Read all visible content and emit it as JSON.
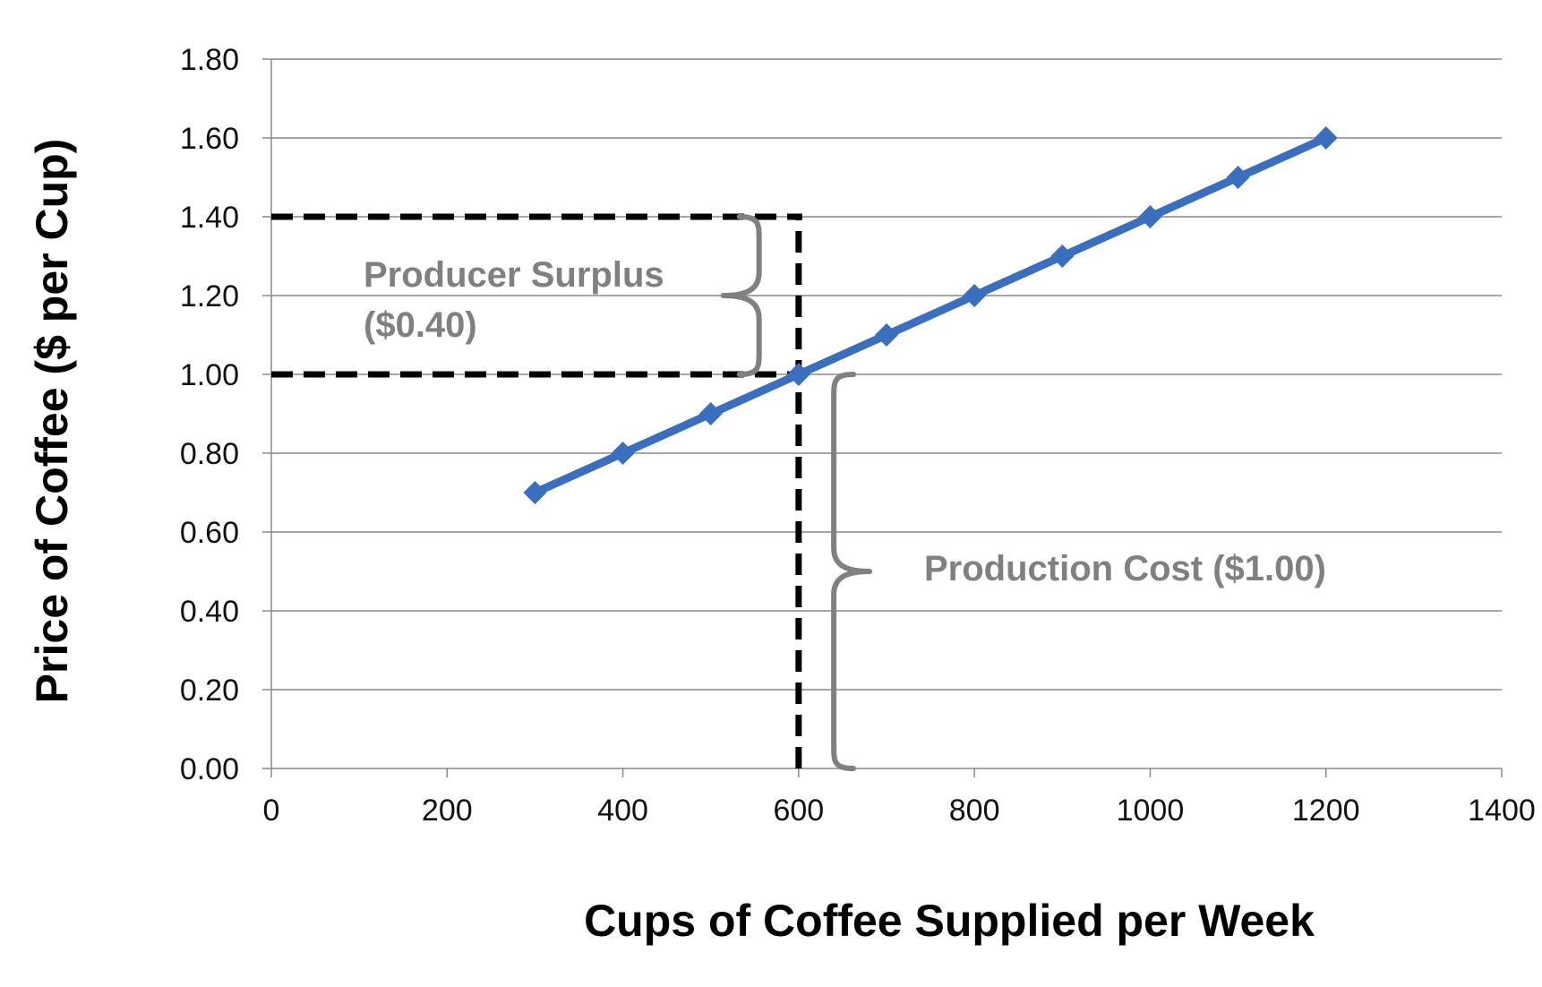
{
  "chart_data": {
    "type": "line",
    "xlabel": "Cups of Coffee Supplied per Week",
    "ylabel": "Price of Coffee ($ per Cup)",
    "xlim": [
      0,
      1400
    ],
    "ylim": [
      0,
      1.8
    ],
    "x_ticks": [
      "0",
      "200",
      "400",
      "600",
      "800",
      "1000",
      "1200",
      "1400"
    ],
    "y_ticks": [
      "0.00",
      "0.20",
      "0.40",
      "0.60",
      "0.80",
      "1.00",
      "1.20",
      "1.40",
      "1.60",
      "1.80"
    ],
    "grid": "horizontal",
    "legend": "none",
    "series": [
      {
        "x": [
          300,
          400,
          500,
          600,
          700,
          800,
          900,
          1000,
          1100,
          1200
        ],
        "values": [
          0.7,
          0.8,
          0.9,
          1.0,
          1.1,
          1.2,
          1.3,
          1.4,
          1.5,
          1.6
        ],
        "color": "#3a6fbf",
        "marker": "diamond"
      }
    ],
    "reference_lines": [
      {
        "type": "horizontal",
        "y": 1.4,
        "x_from": 0,
        "x_to": 600,
        "style": "dashed",
        "color": "#000000"
      },
      {
        "type": "horizontal",
        "y": 1.0,
        "x_from": 0,
        "x_to": 600,
        "style": "dashed",
        "color": "#000000"
      },
      {
        "type": "vertical",
        "x": 600,
        "y_from": 0,
        "y_to": 1.4,
        "style": "dashed",
        "color": "#000000"
      }
    ],
    "annotations": [
      {
        "text": "Producer Surplus",
        "bracket_x": 555,
        "y_from": 1.0,
        "y_to": 1.4,
        "side": "left"
      },
      {
        "text": "($0.40)"
      },
      {
        "text": "Production Cost ($1.00)",
        "bracket_x": 640,
        "y_from": 0.0,
        "y_to": 1.0,
        "side": "right"
      }
    ],
    "annotation_color": "#808080"
  }
}
